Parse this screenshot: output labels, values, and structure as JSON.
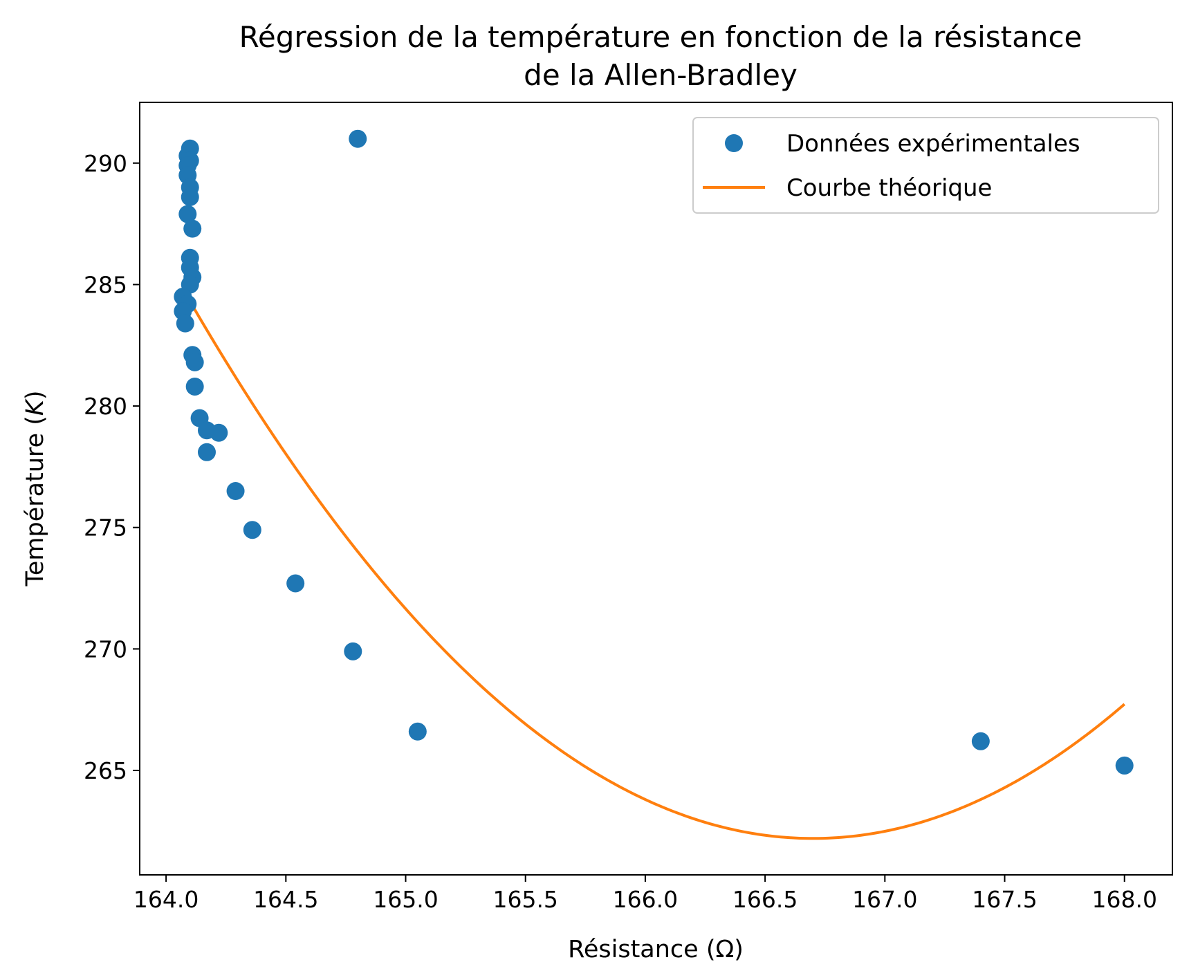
{
  "chart_data": {
    "type": "scatter",
    "title_line1": "Régression de la température en fonction de la résistance",
    "title_line2": "de la Allen-Bradley",
    "xlabel": "Résistance (Ω)",
    "ylabel_prefix": "Température (",
    "ylabel_unit": "K",
    "ylabel_suffix": ")",
    "xlim": [
      163.89,
      168.2
    ],
    "ylim": [
      260.7,
      292.5
    ],
    "xticks": [
      164.0,
      164.5,
      165.0,
      165.5,
      166.0,
      166.5,
      167.0,
      167.5,
      168.0
    ],
    "xtick_labels": [
      "164.0",
      "164.5",
      "165.0",
      "165.5",
      "166.0",
      "166.5",
      "167.0",
      "167.5",
      "168.0"
    ],
    "yticks": [
      265,
      270,
      275,
      280,
      285,
      290
    ],
    "ytick_labels": [
      "265",
      "270",
      "275",
      "280",
      "285",
      "290"
    ],
    "grid": false,
    "legend_position": "top-right",
    "series": [
      {
        "name": "Données expérimentales",
        "kind": "scatter",
        "color": "#1f77b4",
        "points": [
          [
            164.1,
            290.6
          ],
          [
            164.09,
            290.3
          ],
          [
            164.1,
            290.1
          ],
          [
            164.09,
            289.9
          ],
          [
            164.09,
            289.5
          ],
          [
            164.1,
            289.0
          ],
          [
            164.1,
            288.6
          ],
          [
            164.09,
            287.9
          ],
          [
            164.11,
            287.3
          ],
          [
            164.1,
            286.1
          ],
          [
            164.1,
            285.7
          ],
          [
            164.11,
            285.3
          ],
          [
            164.1,
            285.0
          ],
          [
            164.07,
            284.5
          ],
          [
            164.09,
            284.2
          ],
          [
            164.07,
            283.9
          ],
          [
            164.08,
            283.4
          ],
          [
            164.11,
            282.1
          ],
          [
            164.12,
            281.8
          ],
          [
            164.12,
            280.8
          ],
          [
            164.14,
            279.5
          ],
          [
            164.17,
            279.0
          ],
          [
            164.22,
            278.9
          ],
          [
            164.17,
            278.1
          ],
          [
            164.29,
            276.5
          ],
          [
            164.36,
            274.9
          ],
          [
            164.54,
            272.7
          ],
          [
            164.78,
            269.9
          ],
          [
            164.8,
            291.0
          ],
          [
            165.05,
            266.6
          ],
          [
            167.4,
            266.2
          ],
          [
            168.0,
            265.2
          ]
        ]
      },
      {
        "name": "Courbe théorique",
        "kind": "line",
        "color": "#ff7f0e",
        "fit": {
          "vertex_x": 166.7,
          "vertex_y": 262.2,
          "a": 3.27,
          "x_start": 164.07,
          "x_end": 168.0
        }
      }
    ]
  }
}
